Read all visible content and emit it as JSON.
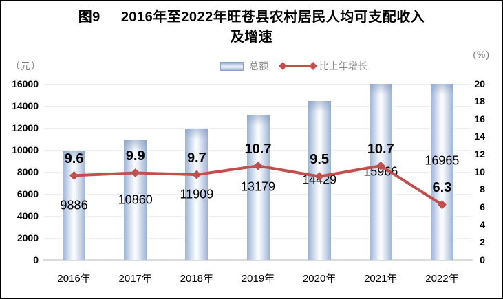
{
  "window": {
    "kind": "statistical figure",
    "background": "#ffffff",
    "border_color": "#000000"
  },
  "chart_data": {
    "type": "bar+line",
    "title": "图9 2016年至2022年旺苍县农村居民人均可支配收入及增速",
    "title_prefix": "图9",
    "title_line1": "2016年至2022年旺苍县农村居民人均可支配收入",
    "title_line2": "及增速",
    "categories": [
      "2016年",
      "2017年",
      "2018年",
      "2019年",
      "2020年",
      "2021年",
      "2022年"
    ],
    "series": [
      {
        "name": "总额",
        "type": "bar",
        "axis": "left",
        "values": [
          9886,
          10860,
          11909,
          13179,
          14429,
          15966,
          16965
        ],
        "color_edge": "#9db3d6",
        "color_center": "#f8fafd"
      },
      {
        "name": "比上年增长",
        "type": "line",
        "axis": "right",
        "values": [
          9.6,
          9.9,
          9.7,
          10.7,
          9.5,
          10.7,
          6.3
        ],
        "color": "#c0504d",
        "marker": "diamond"
      }
    ],
    "left_axis": {
      "unit": "（元）",
      "min": 0,
      "max": 16000,
      "step": 2000,
      "tick_labels": [
        "0",
        "2000",
        "4000",
        "6000",
        "8000",
        "10000",
        "12000",
        "14000",
        "16000"
      ]
    },
    "right_axis": {
      "unit": "(%)",
      "min": 0,
      "max": 20,
      "step": 2,
      "tick_labels": [
        "0",
        "2",
        "4",
        "6",
        "8",
        "10",
        "12",
        "14",
        "16",
        "18",
        "20"
      ]
    },
    "legend_position": "top-center",
    "grid": "horizontal gridlines at left-axis steps",
    "value_label_dy": [
      0,
      0,
      0,
      0,
      0,
      0,
      -16
    ],
    "colors": {
      "line": "#c0504d",
      "bar_edge": "#9db3d6",
      "bar_center": "#f8fafd",
      "gridline": "#f0f0f0",
      "axis_baseline": "#dcdcdc",
      "unit_text": "#7f7f7f",
      "legend_text": "#8a8a8a",
      "label_text": "#000000"
    }
  }
}
